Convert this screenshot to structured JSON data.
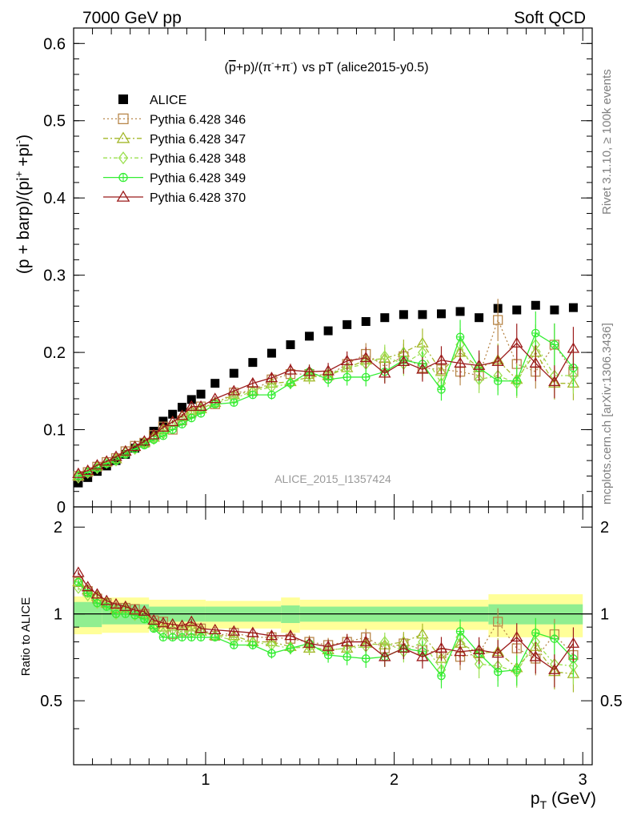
{
  "header": {
    "left": "7000 GeV pp",
    "right": "Soft QCD"
  },
  "side_labels": {
    "rivet": "Rivet 3.1.10, ≥ 100k events",
    "mcplots": "mcplots.cern.ch [arXiv:1306.3436]"
  },
  "chart_data": [
    {
      "type": "scatter",
      "title_plain": "(p+p)/(π+π) vs pT (alice2015-y0.5)",
      "title_parts": {
        "pbar": "p",
        "p1": "+p)/(",
        "pi1": "π",
        "minus": "-",
        "plus1": "+π",
        "plus2": "-",
        "close": ")",
        "tail": "vs pT (alice2015-y0.5)"
      },
      "ylabel_parts": {
        "a": "(p + barp)/(pi",
        "sup1": "+",
        "b": " +pi",
        "sup2": "-",
        "c": ")"
      },
      "watermark": "ALICE_2015_I1357424",
      "xlim": [
        0.3,
        3.05
      ],
      "ylim": [
        0.0,
        0.62
      ],
      "y_ticks": [
        0,
        0.1,
        0.2,
        0.3,
        0.4,
        0.5,
        0.6
      ],
      "y_tick_labels": [
        "0",
        "0.1",
        "0.2",
        "0.3",
        "0.4",
        "0.5",
        "0.6"
      ],
      "legend_position": "top-left",
      "series": [
        {
          "name": "ALICE",
          "color": "#000000",
          "marker": "square-filled",
          "x": [
            0.325,
            0.375,
            0.425,
            0.475,
            0.525,
            0.575,
            0.625,
            0.675,
            0.725,
            0.775,
            0.825,
            0.875,
            0.925,
            0.975,
            1.05,
            1.15,
            1.25,
            1.35,
            1.45,
            1.55,
            1.65,
            1.75,
            1.85,
            1.95,
            2.05,
            2.15,
            2.25,
            2.35,
            2.45,
            2.55,
            2.65,
            2.75,
            2.85,
            2.95
          ],
          "y": [
            0.031,
            0.038,
            0.046,
            0.053,
            0.06,
            0.068,
            0.076,
            0.083,
            0.098,
            0.111,
            0.12,
            0.129,
            0.139,
            0.146,
            0.16,
            0.173,
            0.187,
            0.199,
            0.21,
            0.221,
            0.228,
            0.236,
            0.24,
            0.245,
            0.249,
            0.249,
            0.25,
            0.253,
            0.245,
            0.257,
            0.255,
            0.261,
            0.255,
            0.258
          ]
        },
        {
          "name": "Pythia 6.428 346",
          "color": "#b8874a",
          "marker": "square-open",
          "x": [
            0.325,
            0.375,
            0.425,
            0.475,
            0.525,
            0.575,
            0.625,
            0.675,
            0.725,
            0.775,
            0.825,
            0.875,
            0.925,
            0.975,
            1.05,
            1.15,
            1.25,
            1.35,
            1.45,
            1.55,
            1.65,
            1.75,
            1.85,
            1.95,
            2.05,
            2.15,
            2.25,
            2.35,
            2.45,
            2.55,
            2.65,
            2.75,
            2.85,
            2.95
          ],
          "y": [
            0.04,
            0.045,
            0.052,
            0.058,
            0.063,
            0.072,
            0.079,
            0.083,
            0.093,
            0.104,
            0.1,
            0.112,
            0.122,
            0.13,
            0.133,
            0.148,
            0.15,
            0.165,
            0.172,
            0.172,
            0.17,
            0.185,
            0.198,
            0.182,
            0.195,
            0.18,
            0.178,
            0.175,
            0.17,
            0.242,
            0.185,
            0.175,
            0.21,
            0.175
          ]
        },
        {
          "name": "Pythia 6.428 347",
          "color": "#a4b82a",
          "marker": "triangle-open",
          "x": [
            0.325,
            0.375,
            0.425,
            0.475,
            0.525,
            0.575,
            0.625,
            0.675,
            0.725,
            0.775,
            0.825,
            0.875,
            0.925,
            0.975,
            1.05,
            1.15,
            1.25,
            1.35,
            1.45,
            1.55,
            1.65,
            1.75,
            1.85,
            1.95,
            2.05,
            2.15,
            2.25,
            2.35,
            2.45,
            2.55,
            2.65,
            2.75,
            2.85,
            2.95
          ],
          "y": [
            0.04,
            0.046,
            0.053,
            0.058,
            0.062,
            0.072,
            0.078,
            0.083,
            0.09,
            0.1,
            0.11,
            0.117,
            0.125,
            0.127,
            0.135,
            0.145,
            0.15,
            0.16,
            0.162,
            0.168,
            0.17,
            0.18,
            0.19,
            0.192,
            0.2,
            0.212,
            0.175,
            0.2,
            0.18,
            0.19,
            0.165,
            0.2,
            0.16,
            0.16
          ]
        },
        {
          "name": "Pythia 6.428 348",
          "color": "#9be050",
          "marker": "diamond-open",
          "x": [
            0.325,
            0.375,
            0.425,
            0.475,
            0.525,
            0.575,
            0.625,
            0.675,
            0.725,
            0.775,
            0.825,
            0.875,
            0.925,
            0.975,
            1.05,
            1.15,
            1.25,
            1.35,
            1.45,
            1.55,
            1.65,
            1.75,
            1.85,
            1.95,
            2.05,
            2.15,
            2.25,
            2.35,
            2.45,
            2.55,
            2.65,
            2.75,
            2.85,
            2.95
          ],
          "y": [
            0.038,
            0.044,
            0.05,
            0.057,
            0.06,
            0.07,
            0.075,
            0.082,
            0.088,
            0.095,
            0.105,
            0.112,
            0.12,
            0.127,
            0.135,
            0.14,
            0.15,
            0.155,
            0.16,
            0.17,
            0.172,
            0.18,
            0.185,
            0.195,
            0.185,
            0.2,
            0.16,
            0.21,
            0.165,
            0.17,
            0.16,
            0.21,
            0.17,
            0.17
          ]
        },
        {
          "name": "Pythia 6.428 349",
          "color": "#33ee33",
          "marker": "circle-cross",
          "x": [
            0.325,
            0.375,
            0.425,
            0.475,
            0.525,
            0.575,
            0.625,
            0.675,
            0.725,
            0.775,
            0.825,
            0.875,
            0.925,
            0.975,
            1.05,
            1.15,
            1.25,
            1.35,
            1.45,
            1.55,
            1.65,
            1.75,
            1.85,
            1.95,
            2.05,
            2.15,
            2.25,
            2.35,
            2.45,
            2.55,
            2.65,
            2.75,
            2.85,
            2.95
          ],
          "y": [
            0.04,
            0.045,
            0.05,
            0.056,
            0.06,
            0.068,
            0.075,
            0.08,
            0.087,
            0.092,
            0.1,
            0.107,
            0.115,
            0.121,
            0.133,
            0.135,
            0.145,
            0.145,
            0.16,
            0.175,
            0.165,
            0.168,
            0.168,
            0.175,
            0.19,
            0.185,
            0.152,
            0.22,
            0.18,
            0.163,
            0.163,
            0.225,
            0.21,
            0.18
          ]
        },
        {
          "name": "Pythia 6.428 370",
          "color": "#9b1a1a",
          "marker": "triangle-open",
          "x": [
            0.325,
            0.375,
            0.425,
            0.475,
            0.525,
            0.575,
            0.625,
            0.675,
            0.725,
            0.775,
            0.825,
            0.875,
            0.925,
            0.975,
            1.05,
            1.15,
            1.25,
            1.35,
            1.45,
            1.55,
            1.65,
            1.75,
            1.85,
            1.95,
            2.05,
            2.15,
            2.25,
            2.35,
            2.45,
            2.55,
            2.65,
            2.75,
            2.85,
            2.95
          ],
          "y": [
            0.043,
            0.047,
            0.054,
            0.059,
            0.065,
            0.072,
            0.078,
            0.085,
            0.093,
            0.103,
            0.11,
            0.118,
            0.13,
            0.13,
            0.14,
            0.15,
            0.16,
            0.167,
            0.177,
            0.175,
            0.176,
            0.189,
            0.193,
            0.173,
            0.188,
            0.178,
            0.19,
            0.186,
            0.183,
            0.188,
            0.212,
            0.186,
            0.162,
            0.205
          ]
        }
      ]
    },
    {
      "type": "scatter",
      "ylabel": "Ratio to ALICE",
      "xlabel_main": "p",
      "xlabel_sub": "T",
      "xlabel_unit": " (GeV)",
      "xlim": [
        0.3,
        3.05
      ],
      "ylim": [
        0.3,
        2.35
      ],
      "x_ticks": [
        1,
        2,
        3
      ],
      "x_tick_labels": [
        "1",
        "2",
        "3"
      ],
      "y_ticks": [
        0.5,
        1,
        2
      ],
      "y_tick_labels": [
        "0.5",
        "1",
        "2"
      ],
      "bands": {
        "inner_color": "#90ee90",
        "outer_color": "#ffff99",
        "x_edges": [
          0.3,
          0.45,
          0.7,
          1.0,
          1.4,
          1.5,
          2.5,
          3.0
        ],
        "inner_halfwidth": [
          0.1,
          0.08,
          0.06,
          0.06,
          0.07,
          0.06,
          0.08
        ],
        "outer_halfwidth": [
          0.15,
          0.14,
          0.12,
          0.11,
          0.14,
          0.12,
          0.17
        ]
      },
      "series": [
        {
          "name": "Pythia 6.428 346",
          "color": "#b8874a",
          "marker": "square-open",
          "y": [
            1.29,
            1.2,
            1.13,
            1.09,
            1.05,
            1.05,
            1.04,
            1.0,
            0.95,
            0.94,
            0.85,
            0.87,
            0.88,
            0.89,
            0.84,
            0.86,
            0.83,
            0.83,
            0.82,
            0.8,
            0.78,
            0.8,
            0.83,
            0.76,
            0.79,
            0.75,
            0.73,
            0.71,
            0.73,
            0.94,
            0.76,
            0.7,
            0.85,
            0.72
          ]
        },
        {
          "name": "Pythia 6.428 347",
          "color": "#a4b82a",
          "marker": "triangle-open",
          "y": [
            1.29,
            1.21,
            1.15,
            1.09,
            1.04,
            1.05,
            1.03,
            1.0,
            0.92,
            0.9,
            0.92,
            0.91,
            0.9,
            0.87,
            0.84,
            0.84,
            0.8,
            0.8,
            0.77,
            0.76,
            0.75,
            0.76,
            0.79,
            0.78,
            0.8,
            0.85,
            0.7,
            0.79,
            0.73,
            0.74,
            0.65,
            0.77,
            0.63,
            0.62
          ]
        },
        {
          "name": "Pythia 6.428 348",
          "color": "#9be050",
          "marker": "diamond-open",
          "y": [
            1.23,
            1.16,
            1.09,
            1.08,
            1.0,
            1.03,
            0.99,
            0.99,
            0.9,
            0.86,
            0.88,
            0.87,
            0.86,
            0.87,
            0.84,
            0.81,
            0.8,
            0.78,
            0.76,
            0.77,
            0.75,
            0.76,
            0.77,
            0.8,
            0.74,
            0.8,
            0.64,
            0.83,
            0.67,
            0.66,
            0.63,
            0.8,
            0.67,
            0.66
          ]
        },
        {
          "name": "Pythia 6.428 349",
          "color": "#33ee33",
          "marker": "circle-cross",
          "y": [
            1.29,
            1.18,
            1.09,
            1.06,
            1.0,
            1.0,
            0.99,
            0.96,
            0.89,
            0.83,
            0.83,
            0.83,
            0.83,
            0.83,
            0.83,
            0.78,
            0.78,
            0.73,
            0.76,
            0.79,
            0.72,
            0.71,
            0.7,
            0.71,
            0.76,
            0.74,
            0.61,
            0.87,
            0.73,
            0.63,
            0.64,
            0.86,
            0.82,
            0.7
          ]
        },
        {
          "name": "Pythia 6.428 370",
          "color": "#9b1a1a",
          "marker": "triangle-open",
          "y": [
            1.39,
            1.24,
            1.17,
            1.11,
            1.08,
            1.06,
            1.03,
            1.02,
            0.95,
            0.93,
            0.92,
            0.91,
            0.94,
            0.89,
            0.88,
            0.87,
            0.86,
            0.84,
            0.84,
            0.79,
            0.77,
            0.8,
            0.8,
            0.71,
            0.76,
            0.71,
            0.76,
            0.74,
            0.75,
            0.73,
            0.83,
            0.71,
            0.64,
            0.79
          ]
        }
      ]
    }
  ]
}
